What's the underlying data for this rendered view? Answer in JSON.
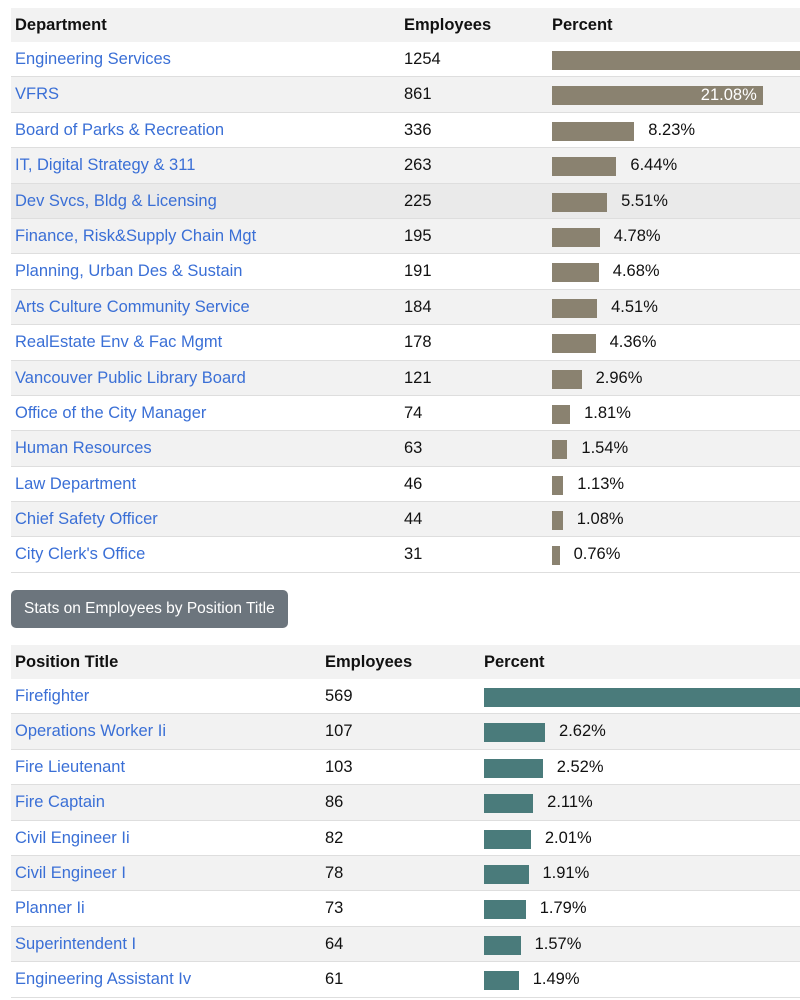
{
  "colors": {
    "dept_bar": "#8a8270",
    "pos_bar": "#4a7b7b",
    "link": "#3a6fd6",
    "button": "#6c757d"
  },
  "departments": {
    "headers": {
      "name": "Department",
      "employees": "Employees",
      "percent": "Percent"
    },
    "rows": [
      {
        "name": "Engineering Services",
        "employees": "1254",
        "pct": 30.7,
        "label": null
      },
      {
        "name": "VFRS",
        "employees": "861",
        "pct": 21.08,
        "label": "21.08%"
      },
      {
        "name": "Board of Parks & Recreation",
        "employees": "336",
        "pct": 8.23,
        "label": "8.23%"
      },
      {
        "name": "IT, Digital Strategy & 311",
        "employees": "263",
        "pct": 6.44,
        "label": "6.44%"
      },
      {
        "name": "Dev Svcs, Bldg & Licensing",
        "employees": "225",
        "pct": 5.51,
        "label": "5.51%"
      },
      {
        "name": "Finance, Risk&Supply Chain Mgt",
        "employees": "195",
        "pct": 4.78,
        "label": "4.78%"
      },
      {
        "name": "Planning, Urban Des & Sustain",
        "employees": "191",
        "pct": 4.68,
        "label": "4.68%"
      },
      {
        "name": "Arts Culture Community Service",
        "employees": "184",
        "pct": 4.51,
        "label": "4.51%"
      },
      {
        "name": "RealEstate Env & Fac Mgmt",
        "employees": "178",
        "pct": 4.36,
        "label": "4.36%"
      },
      {
        "name": "Vancouver Public Library Board",
        "employees": "121",
        "pct": 2.96,
        "label": "2.96%"
      },
      {
        "name": "Office of the City Manager",
        "employees": "74",
        "pct": 1.81,
        "label": "1.81%"
      },
      {
        "name": "Human Resources",
        "employees": "63",
        "pct": 1.54,
        "label": "1.54%"
      },
      {
        "name": "Law Department",
        "employees": "46",
        "pct": 1.13,
        "label": "1.13%"
      },
      {
        "name": "Chief Safety Officer",
        "employees": "44",
        "pct": 1.08,
        "label": "1.08%"
      },
      {
        "name": "City Clerk's Office",
        "employees": "31",
        "pct": 0.76,
        "label": "0.76%"
      }
    ]
  },
  "position_button": "Stats on Employees by Position Title",
  "positions": {
    "headers": {
      "name": "Position Title",
      "employees": "Employees",
      "percent": "Percent"
    },
    "rows": [
      {
        "name": "Firefighter",
        "employees": "569",
        "pct": 13.93,
        "label": null
      },
      {
        "name": "Operations Worker Ii",
        "employees": "107",
        "pct": 2.62,
        "label": "2.62%"
      },
      {
        "name": "Fire Lieutenant",
        "employees": "103",
        "pct": 2.52,
        "label": "2.52%"
      },
      {
        "name": "Fire Captain",
        "employees": "86",
        "pct": 2.11,
        "label": "2.11%"
      },
      {
        "name": "Civil Engineer Ii",
        "employees": "82",
        "pct": 2.01,
        "label": "2.01%"
      },
      {
        "name": "Civil Engineer I",
        "employees": "78",
        "pct": 1.91,
        "label": "1.91%"
      },
      {
        "name": "Planner Ii",
        "employees": "73",
        "pct": 1.79,
        "label": "1.79%"
      },
      {
        "name": "Superintendent I",
        "employees": "64",
        "pct": 1.57,
        "label": "1.57%"
      },
      {
        "name": "Engineering Assistant Iv",
        "employees": "61",
        "pct": 1.49,
        "label": "1.49%"
      }
    ]
  }
}
